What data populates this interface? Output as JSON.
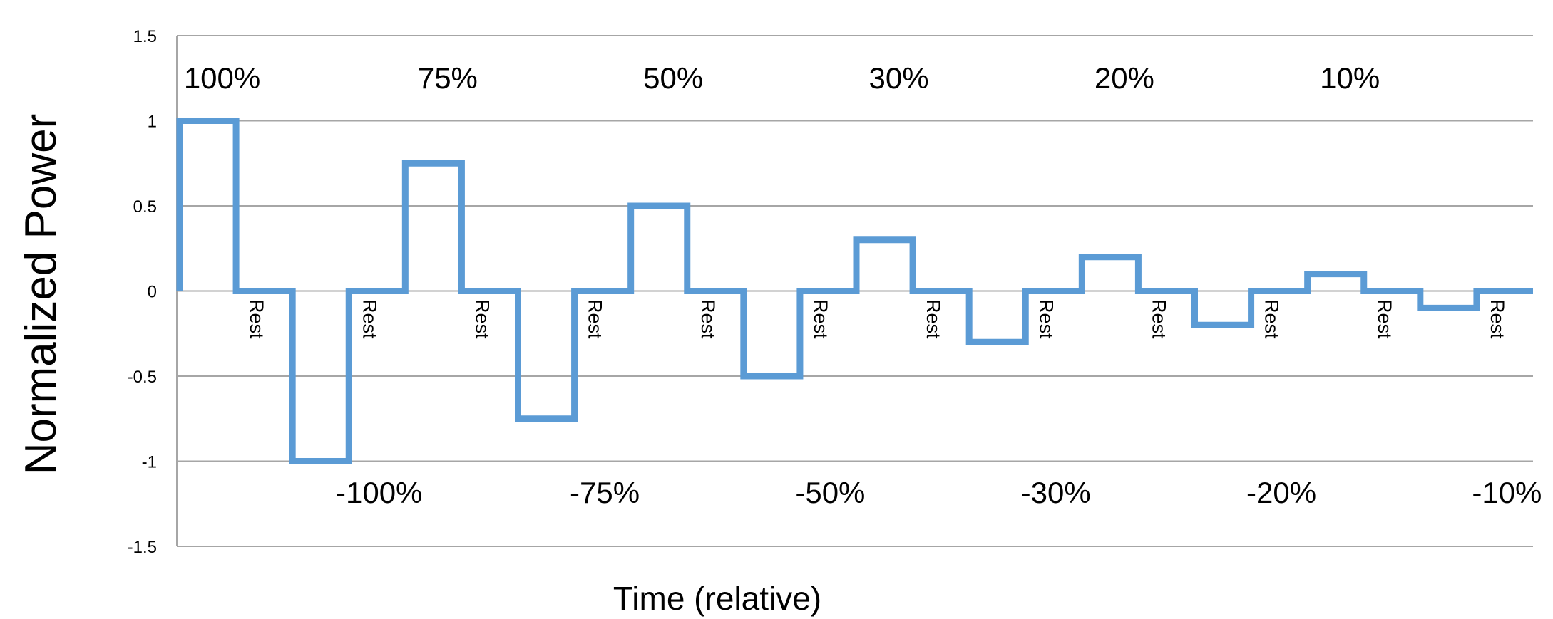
{
  "chart_data": {
    "type": "line",
    "title": "",
    "xlabel": "Time (relative)",
    "ylabel": "Normalized Power",
    "ylim": [
      -1.5,
      1.5
    ],
    "yticks": [
      "1.5",
      "1",
      "0.5",
      "0",
      "-0.5",
      "-1",
      "-1.5"
    ],
    "grid": true,
    "legend": "none",
    "series": [
      {
        "color": "#5b9bd5",
        "step": true,
        "values": [
          1,
          0,
          -1,
          0,
          0.75,
          0,
          -0.75,
          0,
          0.5,
          0,
          -0.5,
          0,
          0.3,
          0,
          -0.3,
          0,
          0.2,
          0,
          -0.2,
          0,
          0.1,
          0,
          -0.1,
          0
        ]
      }
    ],
    "annotations": {
      "positive": [
        "100%",
        "75%",
        "50%",
        "30%",
        "20%",
        "10%"
      ],
      "negative": [
        "-100%",
        "-75%",
        "-50%",
        "-30%",
        "-20%",
        "-10%"
      ],
      "rest": [
        "Rest",
        "Rest",
        "Rest",
        "Rest",
        "Rest",
        "Rest",
        "Rest",
        "Rest",
        "Rest",
        "Rest",
        "Rest",
        "Rest"
      ]
    },
    "colors": {
      "line": "#5b9bd5",
      "grid": "#a6a6a6"
    }
  }
}
